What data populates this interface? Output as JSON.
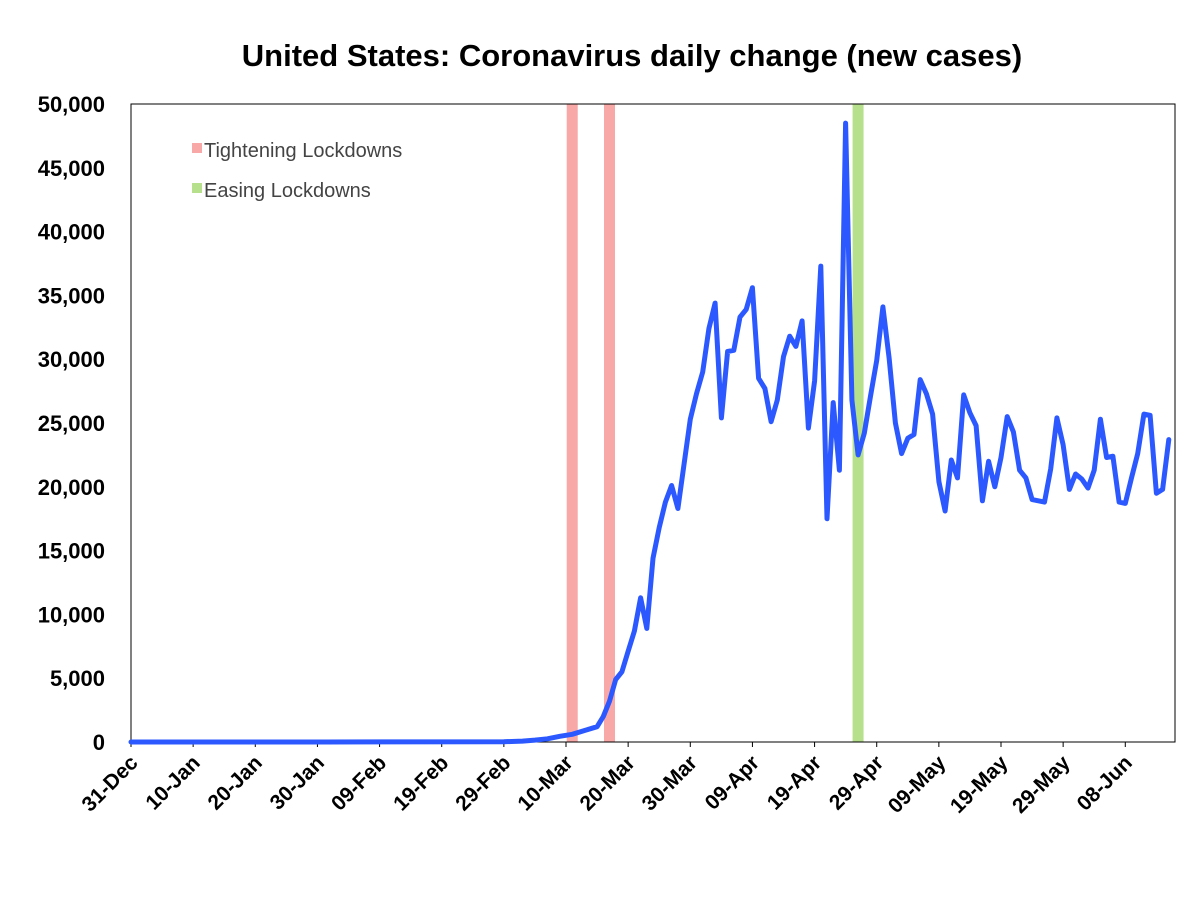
{
  "chart_data": {
    "type": "line",
    "title": "United States: Coronavirus daily change (new cases)",
    "xlabel": "",
    "ylabel": "",
    "ylim": [
      0,
      50000
    ],
    "xlim": [
      "2019-12-31",
      "2020-06-16"
    ],
    "y_ticks": [
      "0",
      "5,000",
      "10,000",
      "15,000",
      "20,000",
      "25,000",
      "30,000",
      "35,000",
      "40,000",
      "45,000",
      "50,000"
    ],
    "x_ticks": [
      {
        "date": "2019-12-31",
        "label": "31-Dec"
      },
      {
        "date": "2020-01-10",
        "label": "10-Jan"
      },
      {
        "date": "2020-01-20",
        "label": "20-Jan"
      },
      {
        "date": "2020-01-30",
        "label": "30-Jan"
      },
      {
        "date": "2020-02-09",
        "label": "09-Feb"
      },
      {
        "date": "2020-02-19",
        "label": "19-Feb"
      },
      {
        "date": "2020-02-29",
        "label": "29-Feb"
      },
      {
        "date": "2020-03-10",
        "label": "10-Mar"
      },
      {
        "date": "2020-03-20",
        "label": "20-Mar"
      },
      {
        "date": "2020-03-30",
        "label": "30-Mar"
      },
      {
        "date": "2020-04-09",
        "label": "09-Apr"
      },
      {
        "date": "2020-04-19",
        "label": "19-Apr"
      },
      {
        "date": "2020-04-29",
        "label": "29-Apr"
      },
      {
        "date": "2020-05-09",
        "label": "09-May"
      },
      {
        "date": "2020-05-19",
        "label": "19-May"
      },
      {
        "date": "2020-05-29",
        "label": "29-May"
      },
      {
        "date": "2020-06-08",
        "label": "08-Jun"
      }
    ],
    "grid": false,
    "legend_position": "top-left",
    "legend": [
      {
        "label": "Tightening Lockdowns",
        "color": "#f9a8a8"
      },
      {
        "label": "Easing Lockdowns",
        "color": "#b6e08c"
      }
    ],
    "markers": [
      {
        "date": "2020-03-11",
        "kind": "tightening",
        "color": "#f9a8a8"
      },
      {
        "date": "2020-03-17",
        "kind": "tightening",
        "color": "#f9a8a8"
      },
      {
        "date": "2020-04-26",
        "kind": "easing",
        "color": "#b6e08c"
      }
    ],
    "series": [
      {
        "color": "#2b59ff",
        "x": [
          "2019-12-31",
          "2020-01-31",
          "2020-02-29",
          "2020-03-03",
          "2020-03-05",
          "2020-03-07",
          "2020-03-09",
          "2020-03-11",
          "2020-03-13",
          "2020-03-15",
          "2020-03-16",
          "2020-03-17",
          "2020-03-18",
          "2020-03-19",
          "2020-03-20",
          "2020-03-21",
          "2020-03-22",
          "2020-03-23",
          "2020-03-24",
          "2020-03-25",
          "2020-03-26",
          "2020-03-27",
          "2020-03-28",
          "2020-03-29",
          "2020-03-30",
          "2020-03-31",
          "2020-04-01",
          "2020-04-02",
          "2020-04-03",
          "2020-04-04",
          "2020-04-05",
          "2020-04-06",
          "2020-04-07",
          "2020-04-08",
          "2020-04-09",
          "2020-04-10",
          "2020-04-11",
          "2020-04-12",
          "2020-04-13",
          "2020-04-14",
          "2020-04-15",
          "2020-04-16",
          "2020-04-17",
          "2020-04-18",
          "2020-04-19",
          "2020-04-20",
          "2020-04-21",
          "2020-04-22",
          "2020-04-23",
          "2020-04-24",
          "2020-04-25",
          "2020-04-26",
          "2020-04-27",
          "2020-04-28",
          "2020-04-29",
          "2020-04-30",
          "2020-05-01",
          "2020-05-02",
          "2020-05-03",
          "2020-05-04",
          "2020-05-05",
          "2020-05-06",
          "2020-05-07",
          "2020-05-08",
          "2020-05-09",
          "2020-05-10",
          "2020-05-11",
          "2020-05-12",
          "2020-05-13",
          "2020-05-14",
          "2020-05-15",
          "2020-05-16",
          "2020-05-17",
          "2020-05-18",
          "2020-05-19",
          "2020-05-20",
          "2020-05-21",
          "2020-05-22",
          "2020-05-23",
          "2020-05-24",
          "2020-05-25",
          "2020-05-26",
          "2020-05-27",
          "2020-05-28",
          "2020-05-29",
          "2020-05-30",
          "2020-05-31",
          "2020-06-01",
          "2020-06-02",
          "2020-06-03",
          "2020-06-04",
          "2020-06-05",
          "2020-06-06",
          "2020-06-07",
          "2020-06-08",
          "2020-06-09",
          "2020-06-10",
          "2020-06-11",
          "2020-06-12",
          "2020-06-13",
          "2020-06-14",
          "2020-06-15"
        ],
        "y": [
          0,
          0,
          20,
          70,
          150,
          250,
          450,
          600,
          900,
          1200,
          2000,
          3200,
          4900,
          5500,
          7100,
          8700,
          11300,
          8900,
          14400,
          16800,
          18800,
          20100,
          18300,
          21800,
          25300,
          27300,
          29000,
          32400,
          34400,
          25400,
          30600,
          30700,
          33300,
          33900,
          35600,
          28500,
          27700,
          25100,
          26800,
          30200,
          31800,
          31000,
          33000,
          24600,
          28300,
          37300,
          17500,
          26600,
          21300,
          48500,
          26800,
          22500,
          24200,
          27100,
          29900,
          34100,
          30100,
          25000,
          22600,
          23800,
          24100,
          28400,
          27300,
          25700,
          20400,
          18100,
          22100,
          20700,
          27200,
          25800,
          24800,
          18900,
          22000,
          20000,
          22300,
          25500,
          24300,
          21300,
          20700,
          19000,
          18900,
          18800,
          21400,
          25400,
          23300,
          19800,
          21000,
          20600,
          19900,
          21300,
          25300,
          22300,
          22400,
          18800,
          18700,
          20700,
          22600,
          25700,
          25600,
          19500,
          19800,
          23700
        ]
      }
    ]
  }
}
